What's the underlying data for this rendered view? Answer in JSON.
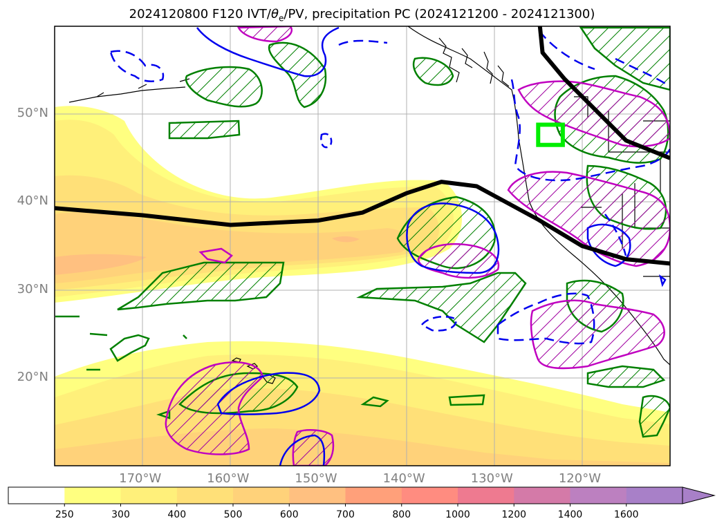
{
  "title": {
    "prefix": "2024120800 F120 IVT/",
    "theta": "θ",
    "theta_sub": "e",
    "suffix": "/PV, precipitation PC (2024121200 - 2024121300)"
  },
  "map": {
    "lon_range": [
      -180,
      -110
    ],
    "lat_range": [
      10,
      60
    ],
    "lat_labels": [
      {
        "lat": 50,
        "label": "50°N"
      },
      {
        "lat": 40,
        "label": "40°N"
      },
      {
        "lat": 30,
        "label": "30°N"
      },
      {
        "lat": 20,
        "label": "20°N"
      }
    ],
    "lon_labels": [
      {
        "lon": -170,
        "label": "170°W"
      },
      {
        "lon": -160,
        "label": "160°W"
      },
      {
        "lon": -150,
        "label": "150°W"
      },
      {
        "lon": -140,
        "label": "140°W"
      },
      {
        "lon": -130,
        "label": "130°W"
      },
      {
        "lon": -120,
        "label": "120°W"
      }
    ],
    "grid": true,
    "colors": {
      "ivt_250": "#ffff80",
      "ivt_300": "#fff07a",
      "ivt_400": "#ffe078",
      "ivt_500": "#ffd27a",
      "pv_line": "#000000",
      "precip_green": "#008000",
      "precip_blue": "#0000ee",
      "precip_magenta": "#c000c0",
      "box": "#00ee00"
    },
    "pv_contours": [
      [
        [
          -180,
          39.3
        ],
        [
          -170,
          38.5
        ],
        [
          -160,
          37.4
        ],
        [
          -150,
          37.9
        ],
        [
          -145,
          38.8
        ],
        [
          -140,
          41.0
        ],
        [
          -136,
          42.3
        ],
        [
          -132,
          41.8
        ],
        [
          -125,
          38.0
        ],
        [
          -120,
          35.0
        ],
        [
          -115,
          33.5
        ],
        [
          -110,
          33.0
        ]
      ],
      [
        [
          -124.8,
          60
        ],
        [
          -124.5,
          57
        ],
        [
          -122,
          54
        ],
        [
          -118,
          50
        ],
        [
          -115,
          47
        ],
        [
          -110,
          45
        ]
      ]
    ],
    "highlight_box": {
      "lon": [
        -125,
        -122.2
      ],
      "lat": [
        46.5,
        48.8
      ]
    }
  },
  "colorbar": {
    "ticks": [
      "250",
      "300",
      "400",
      "500",
      "600",
      "700",
      "800",
      "1000",
      "1200",
      "1400",
      "1600"
    ],
    "colors": [
      "#ffffff",
      "#ffff80",
      "#fff07a",
      "#ffe078",
      "#ffd27a",
      "#ffc080",
      "#ffa07a",
      "#ff8c80",
      "#ee7a90",
      "#d47aa8",
      "#bc80c0",
      "#a880c8"
    ]
  }
}
